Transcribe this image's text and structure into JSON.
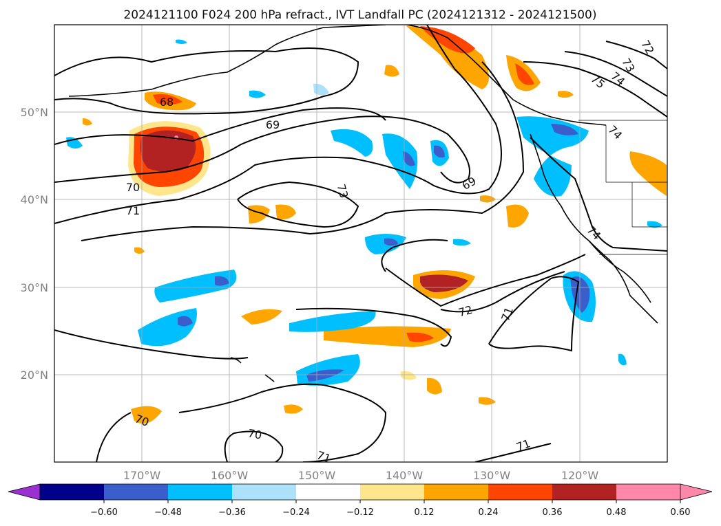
{
  "title": "2024121100 F024 200 hPa refract., IVT Landfall PC (2024121312 - 2024121500)",
  "map": {
    "lon_ticks": [
      {
        "lon": -170,
        "label": "170°W"
      },
      {
        "lon": -160,
        "label": "160°W"
      },
      {
        "lon": -150,
        "label": "150°W"
      },
      {
        "lon": -140,
        "label": "140°W"
      },
      {
        "lon": -130,
        "label": "130°W"
      },
      {
        "lon": -120,
        "label": "120°W"
      }
    ],
    "lat_ticks": [
      {
        "lat": 50,
        "label": "50°N"
      },
      {
        "lat": 40,
        "label": "40°N"
      },
      {
        "lat": 30,
        "label": "30°N"
      },
      {
        "lat": 20,
        "label": "20°N"
      }
    ],
    "lon_range": [
      -180,
      -110
    ],
    "lat_range": [
      10,
      60
    ],
    "gridlines": true,
    "contour_labels": [
      "68",
      "69",
      "70",
      "71",
      "73",
      "69",
      "72",
      "71",
      "73",
      "74",
      "75",
      "72",
      "74",
      "74",
      "70",
      "70",
      "71",
      "71"
    ]
  },
  "colorbar": {
    "ticks": [
      "−0.60",
      "−0.48",
      "−0.36",
      "−0.24",
      "−0.12",
      "0.12",
      "0.24",
      "0.36",
      "0.48",
      "0.60"
    ],
    "colors": [
      "#9b30d0",
      "#00008b",
      "#3a5fcd",
      "#00bfff",
      "#ade1f9",
      "#ffffff",
      "#ffe68c",
      "#ffa500",
      "#ff4500",
      "#b22222",
      "#ff88aa",
      "#ff88aa"
    ]
  }
}
